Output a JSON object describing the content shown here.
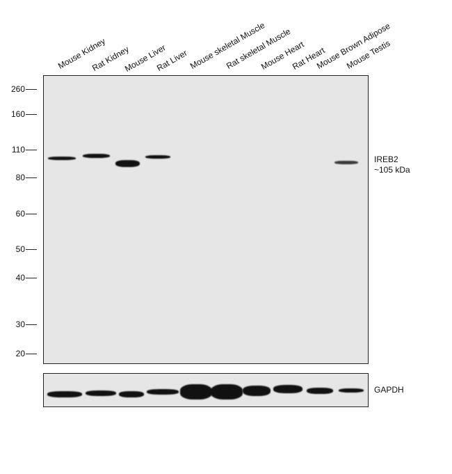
{
  "lanes": [
    "Mouse Kidney",
    "Rat Kidney",
    "Mouse Liver",
    "Rat Liver",
    "Mouse skeletal Muscle",
    "Rat skeletal Muscle",
    "Mouse Heart",
    "Rat Heart",
    "Mouse Brown Adipose",
    "Mouse Testis"
  ],
  "markers": [
    "260",
    "160",
    "110",
    "80",
    "60",
    "50",
    "40",
    "30",
    "20"
  ],
  "target": {
    "name": "IREB2",
    "size": "~105 kDa"
  },
  "loading_control": "GAPDH"
}
